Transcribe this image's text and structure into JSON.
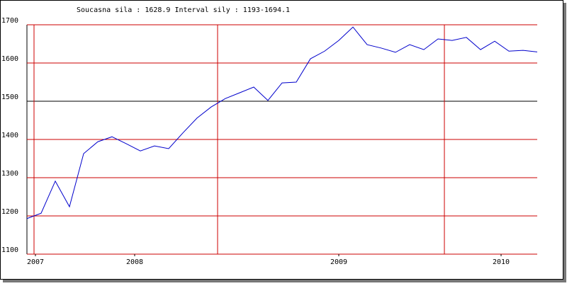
{
  "chart_data": {
    "type": "line",
    "title": "Soucasna sila : 1628.9  Interval sily : 1193-1694.1",
    "x": [
      0,
      1,
      2,
      3,
      4,
      5,
      6,
      7,
      8,
      9,
      10,
      11,
      12,
      13,
      14,
      15,
      16,
      17,
      18,
      19,
      20,
      21,
      22,
      23,
      24,
      25,
      26,
      27,
      28,
      29,
      30,
      31,
      32,
      33,
      34,
      35,
      36
    ],
    "series": [
      {
        "color": "#0000cc",
        "values": [
          1193,
          1207,
          1291,
          1224,
          1363,
          1394,
          1407,
          1389,
          1370,
          1383,
          1376,
          1417,
          1456,
          1485,
          1507,
          1522,
          1537,
          1502,
          1548,
          1550,
          1611,
          1631,
          1659,
          1694,
          1648,
          1639,
          1628,
          1648,
          1635,
          1663,
          1659,
          1667,
          1635,
          1657,
          1631,
          1633,
          1629
        ]
      }
    ],
    "xlim": [
      0,
      36
    ],
    "xticks": [
      {
        "value": 0.6,
        "label": "2007"
      },
      {
        "value": 7.6,
        "label": "2008"
      },
      {
        "value": 22,
        "label": "2009"
      },
      {
        "value": 33.45,
        "label": "2010"
      }
    ],
    "xgrid": [
      0.5,
      13.45,
      29.45
    ],
    "ylim": [
      1100,
      1700
    ],
    "yticks": [
      1100,
      1200,
      1300,
      1400,
      1500,
      1600,
      1700
    ],
    "grid": true,
    "grid_color": "#cc0000",
    "reference_line": 1500,
    "reference_color": "#000000"
  }
}
